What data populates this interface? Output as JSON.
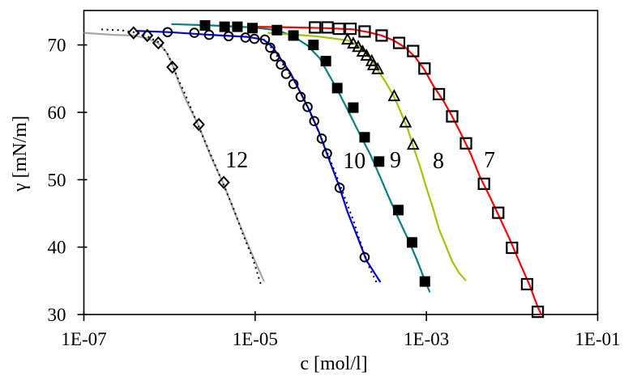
{
  "chart_data": {
    "type": "scatter",
    "title": "",
    "xlabel": "c [mol/l]",
    "ylabel": "γ [mN/m]",
    "x_scale": "log",
    "x_range": [
      1e-07,
      0.1
    ],
    "x_tick_labels": [
      "1E-07",
      "1E-05",
      "1E-03",
      "1E-01"
    ],
    "x_tick_values": [
      1e-07,
      1e-05,
      0.001,
      0.1
    ],
    "y_ticks": [
      30,
      40,
      50,
      60,
      70
    ],
    "y_range": [
      30,
      75
    ],
    "grid": false,
    "legend_position": "inline-curve-labels",
    "series": [
      {
        "label": "12",
        "color": "#a6a6a6",
        "marker": "diamond-open",
        "label_at": [
          6.1e-06,
          52.9
        ],
        "points": [
          [
            3.8e-07,
            71.8
          ],
          [
            5.5e-07,
            71.4
          ],
          [
            7.4e-07,
            70.3
          ],
          [
            1.08e-06,
            66.7
          ],
          [
            2.2e-06,
            58.2
          ],
          [
            4.3e-06,
            49.6
          ]
        ],
        "line": [
          [
            1e-07,
            71.8
          ],
          [
            2.2e-07,
            71.5
          ],
          [
            3.8e-07,
            71.4
          ],
          [
            5.5e-07,
            71.0
          ],
          [
            7.5e-07,
            70.2
          ],
          [
            9.1e-07,
            69.0
          ],
          [
            1.1e-06,
            66.9
          ],
          [
            1.3e-06,
            64.2
          ],
          [
            1.6e-06,
            61.5
          ],
          [
            2.2e-06,
            58.0
          ],
          [
            3e-06,
            53.6
          ],
          [
            4.3e-06,
            49.3
          ],
          [
            5.8e-06,
            45.1
          ],
          [
            8.1e-06,
            40.6
          ],
          [
            1e-05,
            37.9
          ],
          [
            1.27e-05,
            34.9
          ]
        ],
        "fit": [
          [
            1.6e-07,
            72.3
          ],
          [
            2.7e-07,
            72.2
          ],
          [
            3.8e-07,
            71.9
          ],
          [
            5.3e-07,
            71.4
          ],
          [
            7.5e-07,
            70.4
          ],
          [
            9.7e-07,
            68.5
          ],
          [
            1.2e-06,
            65.6
          ],
          [
            1.57e-06,
            62.3
          ],
          [
            2.1e-06,
            58.4
          ],
          [
            2.9e-06,
            54.3
          ],
          [
            4.1e-06,
            49.8
          ],
          [
            5.6e-06,
            45.7
          ],
          [
            7.2e-06,
            41.9
          ],
          [
            9.4e-06,
            38.3
          ],
          [
            1.17e-05,
            34.4
          ]
        ]
      },
      {
        "label": "10",
        "color": "#0000e0",
        "marker": "circle-open",
        "label_at": [
          0.000144,
          52.8
        ],
        "points": [
          [
            9.5e-07,
            71.9
          ],
          [
            1.95e-06,
            71.8
          ],
          [
            2.9e-06,
            71.5
          ],
          [
            4.9e-06,
            71.3
          ],
          [
            7.7e-06,
            71.1
          ],
          [
            9.8e-06,
            70.9
          ],
          [
            1.3e-05,
            70.8
          ],
          [
            1.5e-05,
            69.6
          ],
          [
            1.7e-05,
            68.3
          ],
          [
            2e-05,
            67.1
          ],
          [
            2.3e-05,
            65.7
          ],
          [
            2.8e-05,
            64.2
          ],
          [
            3.4e-05,
            62.3
          ],
          [
            4.1e-05,
            60.8
          ],
          [
            4.9e-05,
            58.7
          ],
          [
            6e-05,
            56.1
          ],
          [
            6.9e-05,
            53.9
          ],
          [
            9.7e-05,
            48.8
          ],
          [
            0.00019,
            38.5
          ]
        ],
        "line": [
          [
            4e-07,
            72.1
          ],
          [
            1e-06,
            71.9
          ],
          [
            3e-06,
            71.5
          ],
          [
            8.1e-06,
            71.2
          ],
          [
            1.25e-05,
            70.8
          ],
          [
            1.6e-05,
            69.7
          ],
          [
            2e-05,
            67.9
          ],
          [
            2.6e-05,
            65.8
          ],
          [
            3.3e-05,
            63.2
          ],
          [
            4.3e-05,
            60.3
          ],
          [
            5.6e-05,
            57.0
          ],
          [
            7.2e-05,
            53.2
          ],
          [
            9.4e-05,
            49.3
          ],
          [
            0.00012,
            45.2
          ],
          [
            0.00016,
            41.2
          ],
          [
            0.0002,
            38.0
          ],
          [
            0.00025,
            36.1
          ],
          [
            0.00029,
            34.8
          ]
        ],
        "fit": [
          [
            1.4e-05,
            70.4
          ],
          [
            1.9e-05,
            67.9
          ],
          [
            2.7e-05,
            65.2
          ],
          [
            3.7e-05,
            62.0
          ],
          [
            5.1e-05,
            58.1
          ],
          [
            7.2e-05,
            53.6
          ],
          [
            9.9e-05,
            49.1
          ],
          [
            0.00014,
            44.0
          ],
          [
            0.00018,
            39.7
          ],
          [
            0.00022,
            36.7
          ],
          [
            0.00027,
            34.4
          ]
        ]
      },
      {
        "label": "9",
        "color": "#008080",
        "marker": "square-filled",
        "label_at": [
          0.000435,
          52.9
        ],
        "points": [
          [
            2.6e-06,
            72.9
          ],
          [
            4.4e-06,
            72.7
          ],
          [
            6.2e-06,
            72.7
          ],
          [
            9.3e-06,
            72.5
          ],
          [
            1.8e-05,
            72.2
          ],
          [
            2.8e-05,
            71.4
          ],
          [
            4.8e-05,
            70.0
          ],
          [
            6.7e-05,
            67.6
          ],
          [
            9.1e-05,
            63.6
          ],
          [
            0.00014,
            60.7
          ],
          [
            0.00019,
            56.3
          ],
          [
            0.00028,
            52.7
          ],
          [
            0.00047,
            45.5
          ],
          [
            0.00068,
            40.7
          ],
          [
            0.00096,
            34.9
          ]
        ],
        "line": [
          [
            1.05e-06,
            73.1
          ],
          [
            3e-06,
            72.9
          ],
          [
            9.3e-06,
            72.6
          ],
          [
            1.8e-05,
            72.2
          ],
          [
            2.8e-05,
            71.3
          ],
          [
            4.1e-05,
            69.9
          ],
          [
            5.7e-05,
            68.0
          ],
          [
            7.1e-05,
            65.8
          ],
          [
            8.9e-05,
            63.6
          ],
          [
            0.00012,
            60.4
          ],
          [
            0.00016,
            57.2
          ],
          [
            0.00022,
            53.8
          ],
          [
            0.00028,
            50.8
          ],
          [
            0.00037,
            47.2
          ],
          [
            0.00048,
            44.0
          ],
          [
            0.00061,
            41.2
          ],
          [
            0.00078,
            38.0
          ],
          [
            0.00097,
            34.9
          ],
          [
            0.0011,
            33.3
          ]
        ]
      },
      {
        "label": "8",
        "color": "#a4c400",
        "marker": "triangle-open",
        "label_at": [
          0.00138,
          52.8
        ],
        "points": [
          [
            0.00012,
            70.8
          ],
          [
            0.00014,
            70.2
          ],
          [
            0.00016,
            69.7
          ],
          [
            0.00018,
            69.0
          ],
          [
            0.0002,
            68.4
          ],
          [
            0.00023,
            67.6
          ],
          [
            0.00024,
            67.0
          ],
          [
            0.00027,
            66.4
          ],
          [
            0.00042,
            62.4
          ],
          [
            0.00057,
            58.5
          ],
          [
            0.0007,
            55.2
          ]
        ],
        "line": [
          [
            1.4e-05,
            71.8
          ],
          [
            5.1e-05,
            71.3
          ],
          [
            0.00012,
            70.7
          ],
          [
            0.00016,
            69.9
          ],
          [
            0.00021,
            68.4
          ],
          [
            0.00026,
            66.6
          ],
          [
            0.00033,
            64.6
          ],
          [
            0.00042,
            62.3
          ],
          [
            0.00051,
            59.8
          ],
          [
            0.00061,
            57.4
          ],
          [
            0.0007,
            55.0
          ],
          [
            0.00084,
            52.0
          ],
          [
            0.001,
            48.8
          ],
          [
            0.0012,
            45.7
          ],
          [
            0.0014,
            42.7
          ],
          [
            0.0017,
            40.1
          ],
          [
            0.002,
            37.9
          ],
          [
            0.0024,
            36.2
          ],
          [
            0.0029,
            35.0
          ]
        ]
      },
      {
        "label": "7",
        "color": "#ff0000",
        "marker": "square-open",
        "label_at": [
          0.00545,
          52.9
        ],
        "points": [
          [
            5e-05,
            72.6
          ],
          [
            7e-05,
            72.6
          ],
          [
            9.5e-05,
            72.4
          ],
          [
            0.00013,
            72.4
          ],
          [
            0.00019,
            72.0
          ],
          [
            0.0003,
            71.4
          ],
          [
            0.00048,
            70.3
          ],
          [
            0.0007,
            69.1
          ],
          [
            0.00095,
            66.5
          ],
          [
            0.0014,
            62.7
          ],
          [
            0.002,
            59.4
          ],
          [
            0.0029,
            55.4
          ],
          [
            0.0047,
            49.4
          ],
          [
            0.0069,
            45.1
          ],
          [
            0.01,
            39.9
          ],
          [
            0.015,
            34.5
          ],
          [
            0.02,
            30.4
          ]
        ],
        "line": [
          [
            1.05e-05,
            72.7
          ],
          [
            2.7e-05,
            72.6
          ],
          [
            7e-05,
            72.5
          ],
          [
            0.00014,
            72.3
          ],
          [
            0.00021,
            71.9
          ],
          [
            0.0003,
            71.4
          ],
          [
            0.00041,
            70.7
          ],
          [
            0.00057,
            69.6
          ],
          [
            0.00074,
            68.2
          ],
          [
            0.00094,
            66.4
          ],
          [
            0.0012,
            64.0
          ],
          [
            0.0016,
            61.6
          ],
          [
            0.002,
            59.4
          ],
          [
            0.0025,
            57.0
          ],
          [
            0.0033,
            53.8
          ],
          [
            0.0042,
            50.5
          ],
          [
            0.0055,
            47.5
          ],
          [
            0.0071,
            44.5
          ],
          [
            0.0093,
            41.3
          ],
          [
            0.012,
            38.0
          ],
          [
            0.016,
            34.4
          ],
          [
            0.02,
            31.1
          ],
          [
            0.022,
            30.0
          ]
        ]
      }
    ]
  }
}
